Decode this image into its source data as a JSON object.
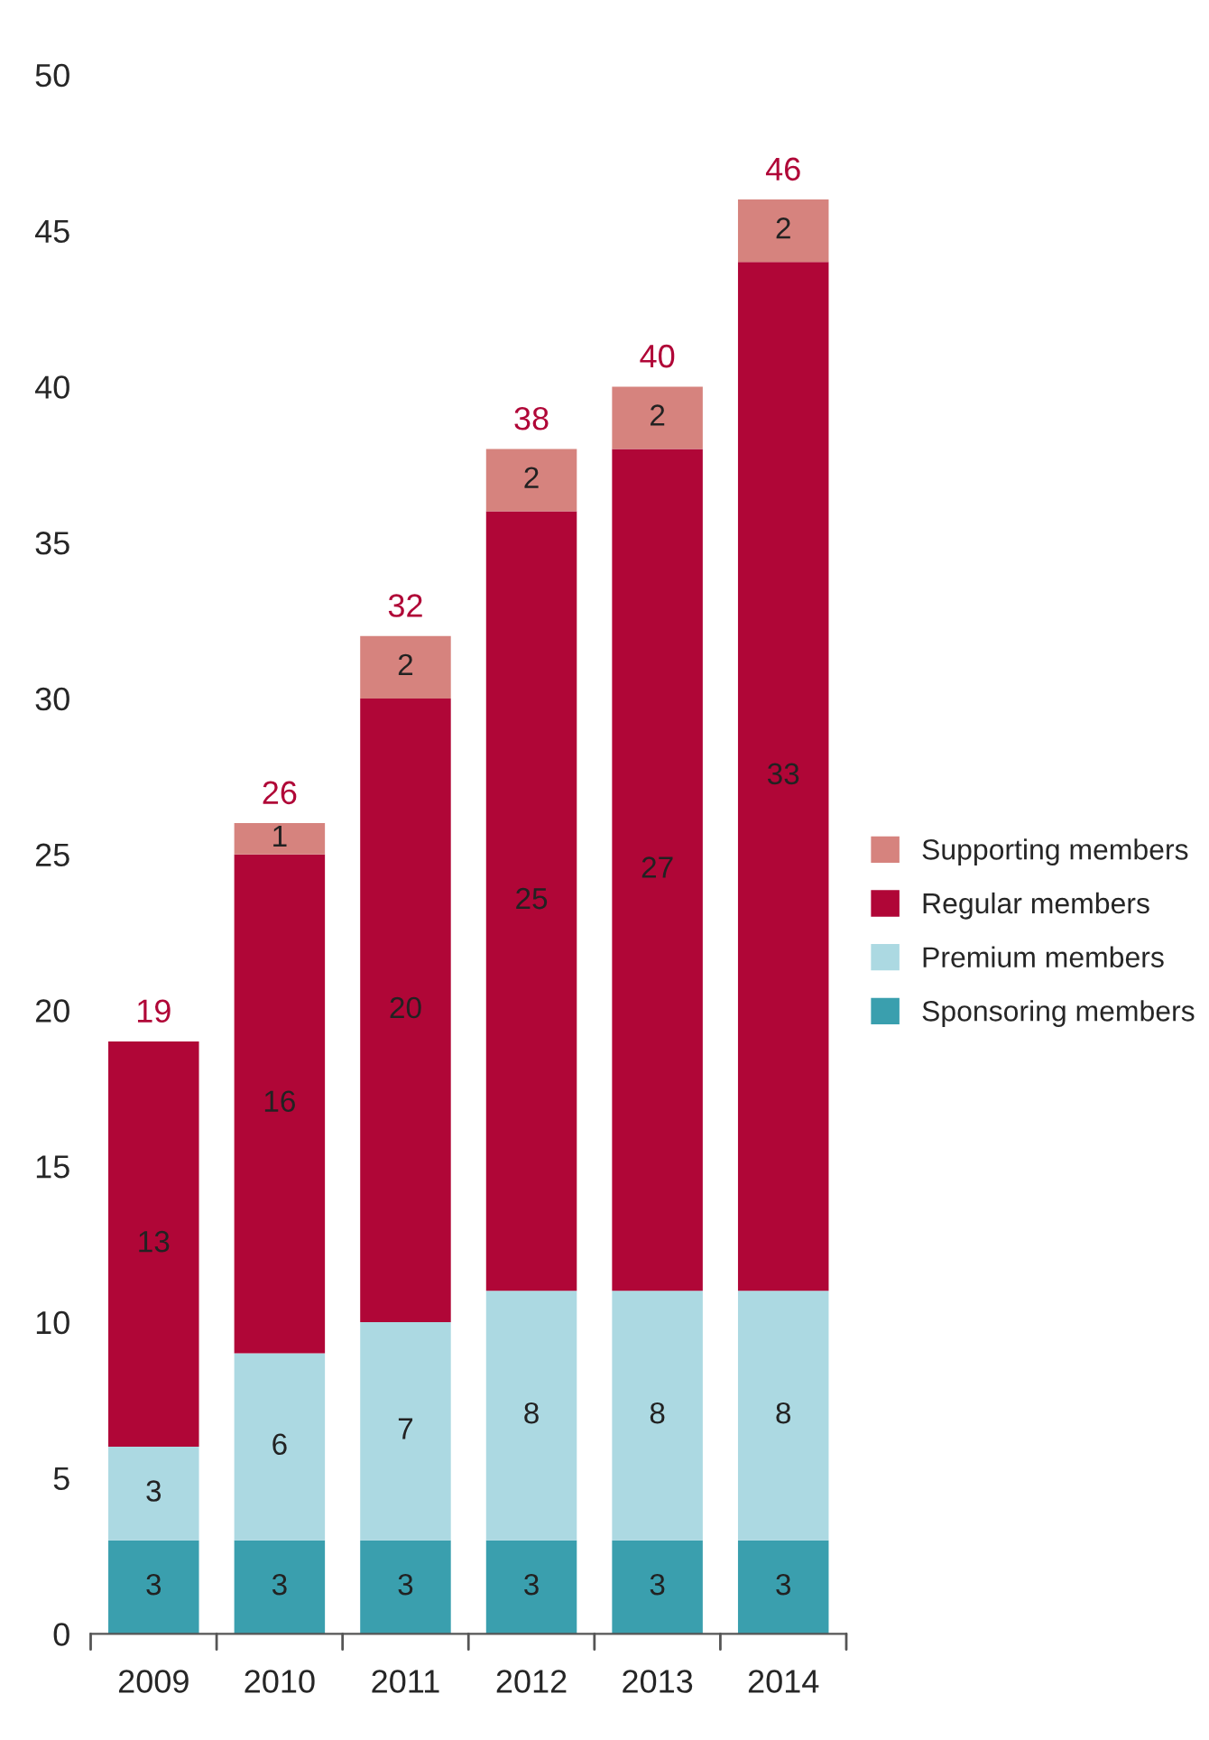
{
  "chart_data": {
    "type": "bar",
    "stacked": true,
    "categories": [
      "2009",
      "2010",
      "2011",
      "2012",
      "2013",
      "2014"
    ],
    "series": [
      {
        "name": "Sponsoring members",
        "color": "#3a9fae",
        "values": [
          3,
          3,
          3,
          3,
          3,
          3
        ]
      },
      {
        "name": "Premium members",
        "color": "#acd9e2",
        "values": [
          3,
          6,
          7,
          8,
          8,
          8
        ]
      },
      {
        "name": "Regular members",
        "color": "#b00637",
        "values": [
          13,
          16,
          20,
          25,
          27,
          33
        ]
      },
      {
        "name": "Supporting members",
        "color": "#d6837e",
        "values": [
          null,
          1,
          2,
          2,
          2,
          2
        ]
      }
    ],
    "data_labels": true,
    "totals": [
      "19",
      "26",
      "32",
      "38",
      "40",
      "46"
    ],
    "ylim": [
      0,
      50
    ],
    "yticks": [
      0,
      5,
      10,
      15,
      20,
      25,
      30,
      35,
      40,
      45,
      50
    ],
    "grid": false,
    "legend": "right"
  }
}
